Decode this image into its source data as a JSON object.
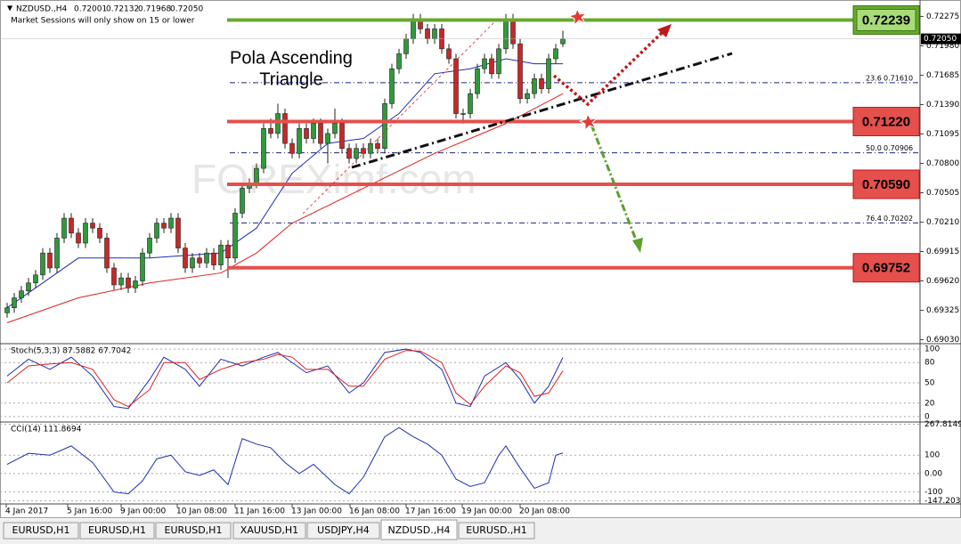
{
  "header": {
    "symbol": "NZDUSD.,H4",
    "ohlc": [
      "0.72001",
      "0.72132",
      "0.71968",
      "0.72050"
    ],
    "note": "Market Sessions will only show on 15 or lower"
  },
  "annotation": [
    "Pola Ascending",
    "Triangle"
  ],
  "watermark": "FOREXimf.com",
  "price_axis": {
    "ylim": [
      0.6899,
      0.7244
    ],
    "ticks": [
      0.72275,
      {
        "value": 0.7198,
        "label": "0.71980"
      },
      0.71685,
      {
        "value": 0.7139,
        "label": "0.71390"
      },
      0.71095,
      {
        "value": 0.708,
        "label": "0.70800"
      },
      0.70505,
      {
        "value": 0.7021,
        "label": "0.70210"
      },
      0.69915,
      {
        "value": 0.6962,
        "label": "0.69620"
      },
      0.69325,
      {
        "value": 0.6903,
        "label": "0.69030"
      }
    ],
    "current": {
      "value": 0.7205,
      "label": "0.72050"
    }
  },
  "levels": [
    {
      "price": 0.72239,
      "color": "#6aa82e"
    },
    {
      "price": {
        "value": 0.7122,
        "label": "0.71220"
      },
      "color": "#e5504c"
    },
    {
      "price": {
        "value": 0.7059,
        "label": "0.70590"
      },
      "color": "#e5504c"
    },
    {
      "price": 0.69752,
      "color": "#e5504c"
    }
  ],
  "fibonacci": [
    {
      "level": "23.6",
      "price": {
        "value": 0.7161,
        "label": "0.71610"
      }
    },
    {
      "level": "50.0",
      "price": 0.70906
    },
    {
      "level": "76.4",
      "price": 0.70202
    }
  ],
  "candles": [
    [
      0.693,
      0.694,
      0.6925,
      0.6935
    ],
    [
      0.6935,
      0.695,
      0.693,
      0.6945
    ],
    [
      0.6945,
      0.6957,
      0.694,
      0.6952
    ],
    [
      0.6952,
      0.6965,
      0.6947,
      0.696
    ],
    [
      0.696,
      0.6973,
      0.6955,
      0.6968
    ],
    [
      0.6968,
      0.6995,
      0.6963,
      0.699
    ],
    [
      0.699,
      0.6995,
      0.697,
      0.6975
    ],
    [
      0.6975,
      0.701,
      0.697,
      0.7005
    ],
    [
      0.7005,
      0.703,
      0.7,
      0.7025
    ],
    [
      0.7025,
      0.703,
      0.7005,
      0.701
    ],
    [
      0.701,
      0.7015,
      0.6995,
      0.7
    ],
    [
      0.7,
      0.7025,
      0.6995,
      0.702
    ],
    [
      0.702,
      0.7025,
      0.701,
      0.7015
    ],
    [
      0.7015,
      0.702,
      0.7,
      0.7005
    ],
    [
      0.7005,
      0.701,
      0.697,
      0.6975
    ],
    [
      0.6975,
      0.698,
      0.6953,
      0.6958
    ],
    [
      0.6958,
      0.697,
      0.6953,
      0.6965
    ],
    [
      0.6965,
      0.697,
      0.695,
      0.6955
    ],
    [
      0.6955,
      0.6967,
      0.695,
      0.6962
    ],
    [
      0.6962,
      0.6995,
      0.6957,
      0.699
    ],
    [
      0.699,
      0.701,
      0.6985,
      0.7005
    ],
    [
      0.7005,
      0.7025,
      0.7,
      0.702
    ],
    [
      0.702,
      0.7025,
      0.701,
      0.7015
    ],
    [
      0.7015,
      0.703,
      0.701,
      0.7025
    ],
    [
      0.7025,
      0.703,
      0.699,
      0.6995
    ],
    [
      0.6995,
      0.7,
      0.697,
      0.6975
    ],
    [
      0.6975,
      0.699,
      0.697,
      0.6985
    ],
    [
      0.6985,
      0.699,
      0.6975,
      0.698
    ],
    [
      0.698,
      0.6995,
      0.6975,
      0.699
    ],
    [
      0.699,
      0.6995,
      0.6973,
      0.6978
    ],
    [
      0.6978,
      0.7003,
      0.6973,
      0.6998
    ],
    [
      0.6998,
      0.7003,
      0.6965,
      0.6985
    ],
    [
      0.6985,
      0.7035,
      0.698,
      0.703
    ],
    [
      0.703,
      0.706,
      0.7025,
      0.7055
    ],
    [
      0.7055,
      0.7065,
      0.705,
      0.706
    ],
    [
      0.706,
      0.708,
      0.7055,
      0.7075
    ],
    [
      0.7075,
      0.712,
      0.707,
      0.7115
    ],
    [
      0.7115,
      0.7125,
      0.7105,
      0.711
    ],
    [
      0.711,
      0.714,
      0.7105,
      0.713
    ],
    [
      0.713,
      0.7135,
      0.7095,
      0.71
    ],
    [
      0.71,
      0.7105,
      0.7085,
      0.709
    ],
    [
      0.709,
      0.712,
      0.7085,
      0.7115
    ],
    [
      0.7115,
      0.712,
      0.71,
      0.7105
    ],
    [
      0.7105,
      0.7125,
      0.71,
      0.712
    ],
    [
      0.712,
      0.7125,
      0.7095,
      0.71
    ],
    [
      0.71,
      0.7115,
      0.708,
      0.711
    ],
    [
      0.711,
      0.7135,
      0.7105,
      0.712
    ],
    [
      0.712,
      0.7125,
      0.709,
      0.7095
    ],
    [
      0.7095,
      0.71,
      0.708,
      0.7085
    ],
    [
      0.7085,
      0.71,
      0.708,
      0.7095
    ],
    [
      0.7095,
      0.71,
      0.7085,
      0.709
    ],
    [
      0.709,
      0.7105,
      0.7085,
      0.71
    ],
    [
      0.71,
      0.7105,
      0.709,
      0.7095
    ],
    [
      0.7095,
      0.7145,
      0.709,
      0.714
    ],
    [
      0.714,
      0.718,
      0.7135,
      0.7175
    ],
    [
      0.7175,
      0.7195,
      0.717,
      0.719
    ],
    [
      0.719,
      0.721,
      0.7185,
      0.7205
    ],
    [
      0.7205,
      0.723,
      0.72,
      0.7225
    ],
    [
      0.7225,
      0.723,
      0.721,
      0.7215
    ],
    [
      0.7215,
      0.722,
      0.72,
      0.7205
    ],
    [
      0.7205,
      0.722,
      0.72,
      0.7215
    ],
    [
      0.7215,
      0.722,
      0.719,
      0.7195
    ],
    [
      0.7195,
      0.72,
      0.718,
      0.7185
    ],
    [
      0.7185,
      0.719,
      0.7125,
      0.713
    ],
    [
      0.713,
      0.7135,
      0.712,
      0.713
    ],
    [
      0.713,
      0.7155,
      0.7125,
      0.715
    ],
    [
      0.715,
      0.718,
      0.7145,
      0.7175
    ],
    [
      0.7175,
      0.719,
      0.717,
      0.7185
    ],
    [
      0.7185,
      0.719,
      0.7165,
      0.717
    ],
    [
      0.717,
      0.72,
      0.7165,
      0.7195
    ],
    [
      0.7195,
      0.723,
      0.719,
      0.7225
    ],
    [
      0.7225,
      0.723,
      0.7195,
      0.72
    ],
    [
      0.72,
      0.7205,
      0.714,
      0.7145
    ],
    [
      0.7145,
      0.7155,
      0.714,
      0.715
    ],
    [
      0.715,
      0.717,
      0.7145,
      0.7165
    ],
    [
      0.7165,
      0.717,
      0.715,
      0.7155
    ],
    [
      0.7155,
      0.719,
      0.715,
      0.7185
    ],
    [
      0.7185,
      0.72,
      0.718,
      0.7195
    ],
    [
      0.72001,
      0.72132,
      0.71968,
      0.7205
    ]
  ],
  "moving_averages": [
    {
      "color": "#1f2fb0",
      "x": [
        0,
        10,
        20,
        30,
        35,
        40,
        45,
        50,
        55,
        60,
        65,
        70,
        74,
        78
      ],
      "values": [
        0.6935,
        0.6985,
        0.6985,
        0.699,
        0.7015,
        0.707,
        0.71,
        0.7105,
        0.713,
        0.717,
        0.7175,
        0.7185,
        0.718,
        0.718
      ]
    },
    {
      "color": "#e02020",
      "x": [
        0,
        10,
        20,
        30,
        35,
        40,
        50,
        60,
        70,
        78
      ],
      "values": [
        0.692,
        0.6945,
        0.696,
        0.697,
        0.699,
        0.702,
        0.7055,
        0.709,
        0.712,
        0.715
      ]
    }
  ],
  "stochastic": {
    "title": "Stoch(5,3,3) 87.5882 67.7042",
    "ylim": [
      -8,
      108
    ],
    "ticks": [
      0,
      20,
      50,
      80,
      100
    ],
    "series": [
      {
        "color": "#1f2fb0",
        "x": [
          0,
          3,
          6,
          9,
          12,
          15,
          17,
          20,
          22,
          25,
          27,
          30,
          33,
          36,
          38,
          40,
          42,
          45,
          48,
          50,
          53,
          56,
          58,
          61,
          63,
          65,
          67,
          70,
          72,
          74,
          76,
          78
        ],
        "values": [
          60,
          85,
          70,
          88,
          60,
          15,
          12,
          55,
          88,
          70,
          45,
          85,
          75,
          88,
          95,
          80,
          65,
          75,
          35,
          50,
          95,
          100,
          95,
          70,
          20,
          15,
          60,
          80,
          55,
          20,
          45,
          87.6
        ]
      },
      {
        "color": "#e02020",
        "x": [
          0,
          3,
          6,
          9,
          12,
          15,
          17,
          20,
          22,
          25,
          27,
          30,
          33,
          36,
          38,
          40,
          42,
          45,
          48,
          50,
          53,
          56,
          58,
          61,
          63,
          65,
          67,
          70,
          72,
          74,
          76,
          78
        ],
        "values": [
          50,
          75,
          78,
          80,
          70,
          25,
          15,
          40,
          80,
          80,
          55,
          70,
          80,
          85,
          92,
          88,
          70,
          70,
          45,
          45,
          85,
          98,
          97,
          80,
          35,
          18,
          45,
          75,
          65,
          30,
          35,
          67.7
        ]
      }
    ]
  },
  "cci": {
    "title": "CCI(14) 111.8694",
    "ylim": [
      -165,
      280
    ],
    "ticks": [
      267.8149,
      100,
      {
        "value": 0,
        "label": "0.00"
      },
      -100,
      -147.2033
    ],
    "series": [
      {
        "color": "#1f2fb0",
        "x": [
          0,
          3,
          6,
          9,
          12,
          15,
          17,
          19,
          21,
          23,
          25,
          27,
          29,
          31,
          33,
          35,
          37,
          39,
          41,
          43,
          46,
          48,
          50,
          53,
          55,
          57,
          59,
          61,
          63,
          65,
          67,
          69,
          70,
          72,
          74,
          76,
          77,
          78
        ],
        "values": [
          50,
          110,
          100,
          150,
          60,
          -100,
          -110,
          -40,
          80,
          100,
          10,
          -10,
          20,
          -60,
          190,
          160,
          140,
          60,
          0,
          50,
          -60,
          -110,
          -20,
          200,
          250,
          200,
          160,
          100,
          -30,
          -70,
          -50,
          100,
          150,
          30,
          -80,
          -50,
          100,
          111.8694
        ]
      }
    ]
  },
  "time_axis": [
    "4 Jan 2017",
    "5 Jan 16:00",
    "9 Jan 00:00",
    "10 Jan 08:00",
    "11 Jan 16:00",
    "13 Jan 00:00",
    "16 Jan 08:00",
    "17 Jan 16:00",
    "19 Jan 00:00",
    "20 Jan 08:00"
  ],
  "tabs": [
    "EURUSD,H1",
    "EURUSD,H1",
    "EURUSD,H1",
    "XAUUSD,H1",
    "USDJPY,H4",
    "NZDUSD.,H4",
    "EURUSD.,H1"
  ],
  "active_tab": 5
}
